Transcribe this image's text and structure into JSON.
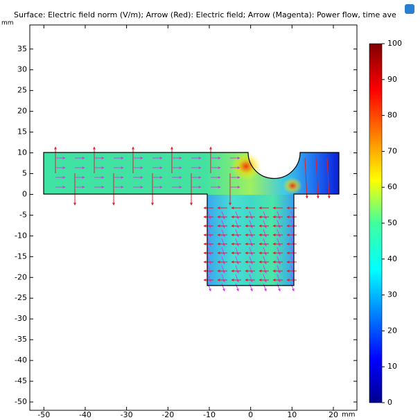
{
  "chart_data": {
    "type": "surface",
    "title": "Surface: Electric field norm (V/m); Arrow (Red): Electric field; Arrow (Magenta): Power flow, time ave",
    "x_unit": "mm",
    "y_unit": "mm",
    "xlim": [
      -53.4,
      25.7
    ],
    "ylim": [
      -52,
      40.8
    ],
    "xticks": [
      -50,
      -40,
      -30,
      -20,
      -10,
      0,
      10,
      20
    ],
    "yticks": [
      -50,
      -45,
      -40,
      -35,
      -30,
      -25,
      -20,
      -15,
      -10,
      -5,
      0,
      5,
      10,
      15,
      20,
      25,
      30,
      35
    ],
    "colorbar": {
      "colormap": "jet",
      "lim": [
        0,
        100
      ],
      "ticks": [
        0,
        10,
        20,
        30,
        40,
        50,
        60,
        70,
        80,
        90,
        100
      ]
    }
  }
}
